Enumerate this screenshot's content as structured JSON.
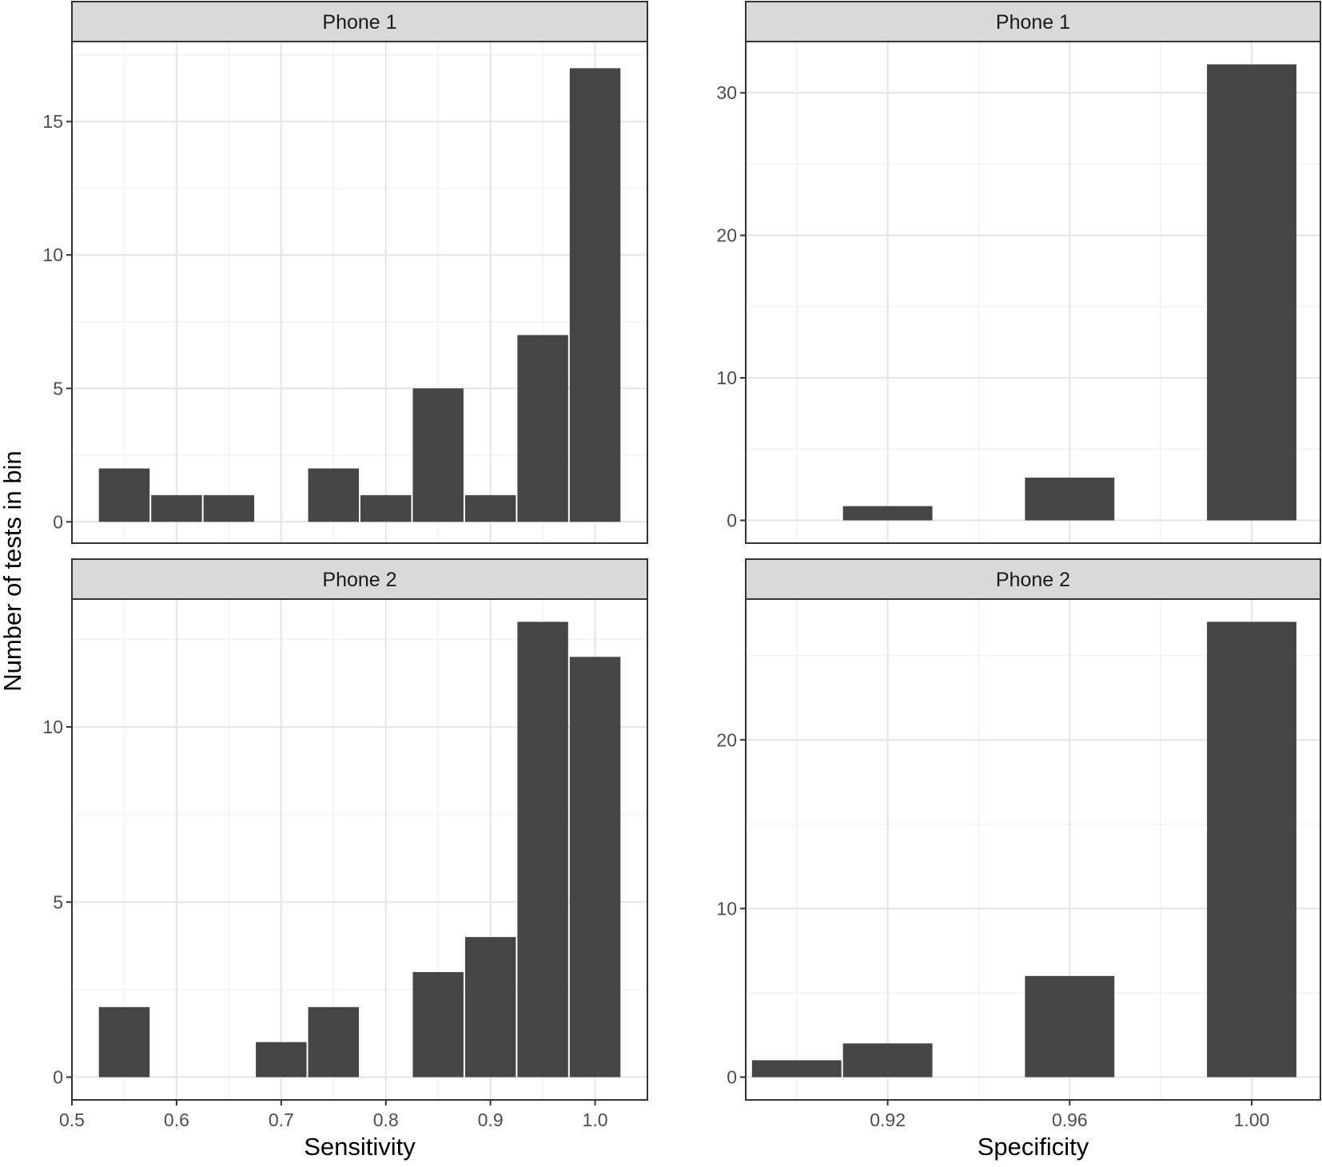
{
  "figure": {
    "ylabel": "Number of tests in bin",
    "colors": {
      "bar": "#454545",
      "strip_fill": "#d9d9d9",
      "panel_border": "#333333",
      "grid_major": "#e6e6e6",
      "grid_minor": "#f2f2f2",
      "background": "#ffffff"
    }
  },
  "chart_data": [
    {
      "type": "bar",
      "panel": "sens-phone1",
      "strip": "Phone 1",
      "xlabel": "",
      "ylabel": "Number of tests in bin",
      "xlim": [
        0.5,
        1.05
      ],
      "ylim": [
        -0.8,
        18.0
      ],
      "x_ticks": [
        0.5,
        0.6,
        0.7,
        0.8,
        0.9,
        1.0
      ],
      "x_tick_labels": [],
      "y_ticks": [
        0,
        5,
        10,
        15
      ],
      "y_tick_labels": [
        "0",
        "5",
        "10",
        "15"
      ],
      "bin_width": 0.05,
      "bins": [
        {
          "center": 0.55,
          "count": 2
        },
        {
          "center": 0.6,
          "count": 1
        },
        {
          "center": 0.65,
          "count": 1
        },
        {
          "center": 0.75,
          "count": 2
        },
        {
          "center": 0.8,
          "count": 1
        },
        {
          "center": 0.85,
          "count": 5
        },
        {
          "center": 0.9,
          "count": 1
        },
        {
          "center": 0.95,
          "count": 7
        },
        {
          "center": 1.0,
          "count": 17
        }
      ],
      "grid": true
    },
    {
      "type": "bar",
      "panel": "spec-phone1",
      "strip": "Phone 1",
      "xlabel": "",
      "xlim": [
        0.8888,
        1.0151
      ],
      "ylim": [
        -1.6,
        33.6
      ],
      "x_ticks": [
        0.92,
        0.96,
        1.0
      ],
      "x_tick_labels": [],
      "y_ticks": [
        0,
        10,
        20,
        30
      ],
      "y_tick_labels": [
        "0",
        "10",
        "20",
        "30"
      ],
      "bin_width": 0.02,
      "bins": [
        {
          "center": 0.9,
          "count": 0
        },
        {
          "center": 0.92,
          "count": 1
        },
        {
          "center": 0.96,
          "count": 3
        },
        {
          "center": 1.0,
          "count": 32
        }
      ],
      "grid": true
    },
    {
      "type": "bar",
      "panel": "sens-phone2",
      "strip": "Phone 2",
      "xlabel": "Sensitivity",
      "xlim": [
        0.5,
        1.05
      ],
      "ylim": [
        -0.65,
        13.65
      ],
      "x_ticks": [
        0.5,
        0.6,
        0.7,
        0.8,
        0.9,
        1.0
      ],
      "x_tick_labels": [
        "0.5",
        "0.6",
        "0.7",
        "0.8",
        "0.9",
        "1.0"
      ],
      "y_ticks": [
        0,
        5,
        10
      ],
      "y_tick_labels": [
        "0",
        "5",
        "10"
      ],
      "bin_width": 0.05,
      "bins": [
        {
          "center": 0.55,
          "count": 2
        },
        {
          "center": 0.7,
          "count": 1
        },
        {
          "center": 0.75,
          "count": 2
        },
        {
          "center": 0.85,
          "count": 3
        },
        {
          "center": 0.9,
          "count": 4
        },
        {
          "center": 0.95,
          "count": 13
        },
        {
          "center": 1.0,
          "count": 12
        }
      ],
      "grid": true
    },
    {
      "type": "bar",
      "panel": "spec-phone2",
      "strip": "Phone 2",
      "xlabel": "Specificity",
      "xlim": [
        0.8888,
        1.0151
      ],
      "ylim": [
        -1.35,
        28.35
      ],
      "x_ticks": [
        0.92,
        0.96,
        1.0
      ],
      "x_tick_labels": [
        "0.92",
        "0.96",
        "1.00"
      ],
      "y_ticks": [
        0,
        10,
        20
      ],
      "y_tick_labels": [
        "0",
        "10",
        "20"
      ],
      "bin_width": 0.02,
      "bins": [
        {
          "center": 0.9,
          "count": 1
        },
        {
          "center": 0.92,
          "count": 2
        },
        {
          "center": 0.96,
          "count": 6
        },
        {
          "center": 1.0,
          "count": 27
        }
      ],
      "grid": true
    }
  ]
}
